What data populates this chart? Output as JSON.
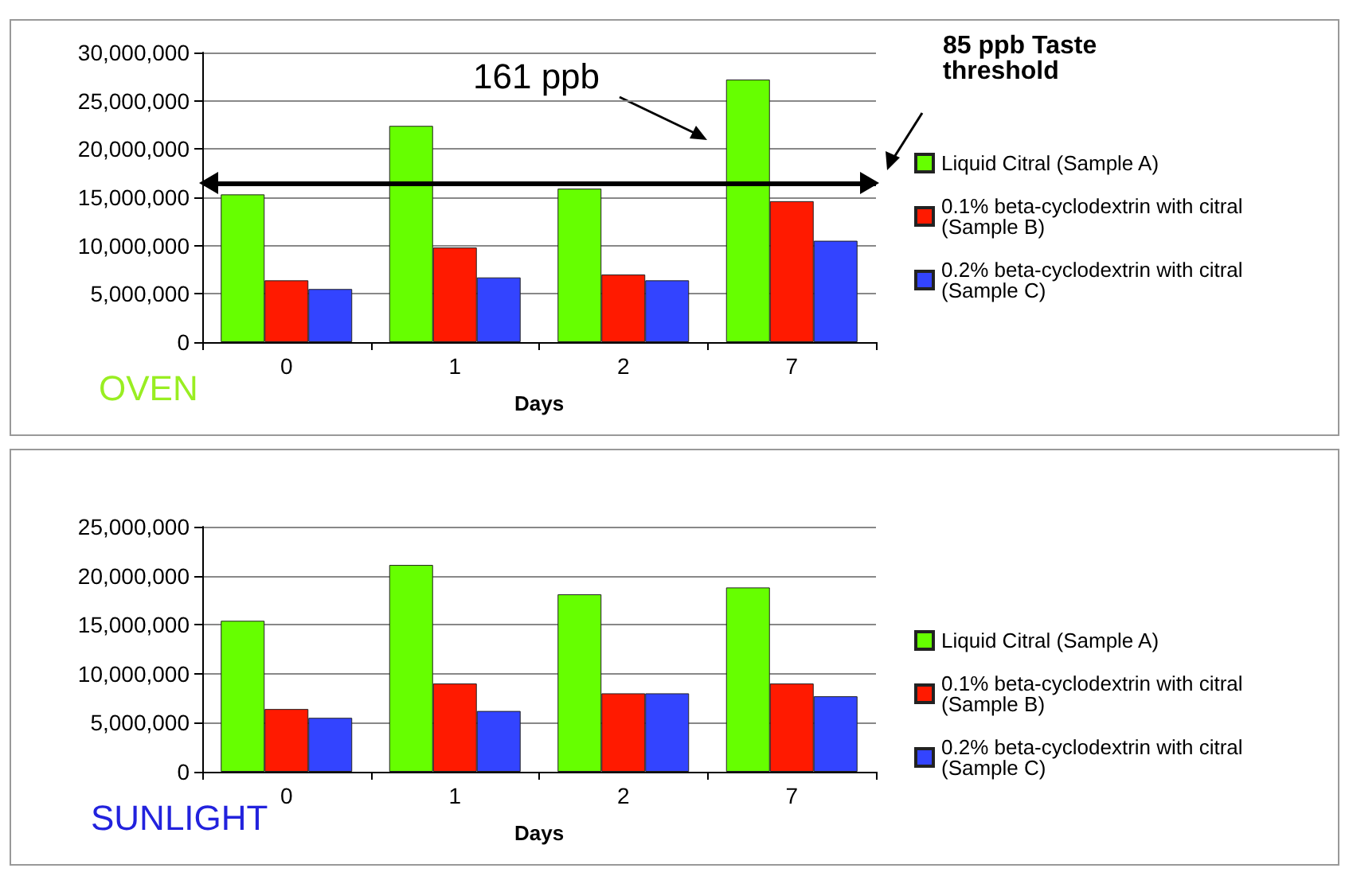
{
  "chart_data": [
    {
      "type": "bar",
      "title": "OVEN",
      "xlabel": "Days",
      "categories": [
        "0",
        "1",
        "2",
        "7"
      ],
      "series": [
        {
          "name": "Liquid Citral (Sample A)",
          "color": "#66ff00",
          "values": [
            15300000,
            22400000,
            15900000,
            27200000
          ]
        },
        {
          "name": "0.1% beta-cyclodextrin with citral (Sample B)",
          "color": "#ff1a00",
          "values": [
            6400000,
            9800000,
            7000000,
            14600000
          ]
        },
        {
          "name": "0.2% beta-cyclodextrin with citral (Sample C)",
          "color": "#3344ff",
          "values": [
            5500000,
            6700000,
            6400000,
            10500000
          ]
        }
      ],
      "ylim": [
        0,
        30000000
      ],
      "yticks": [
        {
          "value": 0,
          "label": "0"
        },
        {
          "value": 5000000,
          "label": "5,000,000"
        },
        {
          "value": 10000000,
          "label": "10,000,000"
        },
        {
          "value": 15000000,
          "label": "15,000,000"
        },
        {
          "value": 20000000,
          "label": "20,000,000"
        },
        {
          "value": 25000000,
          "label": "25,000,000"
        },
        {
          "value": 30000000,
          "label": "30,000,000"
        }
      ],
      "grid": "y",
      "legend": "right",
      "ref_lines": [
        {
          "axis": "y",
          "value": 16500000,
          "color": "#000000"
        }
      ],
      "annotations": [
        "161 ppb",
        "85 ppb Taste threshold"
      ]
    },
    {
      "type": "bar",
      "title": "SUNLIGHT",
      "xlabel": "Days",
      "categories": [
        "0",
        "1",
        "2",
        "7"
      ],
      "series": [
        {
          "name": "Liquid Citral (Sample A)",
          "color": "#66ff00",
          "values": [
            15400000,
            21100000,
            18100000,
            18800000
          ]
        },
        {
          "name": "0.1% beta-cyclodextrin with citral (Sample B)",
          "color": "#ff1a00",
          "values": [
            6400000,
            9000000,
            8000000,
            9000000
          ]
        },
        {
          "name": "0.2% beta-cyclodextrin with citral (Sample C)",
          "color": "#3344ff",
          "values": [
            5500000,
            6200000,
            8000000,
            7700000
          ]
        }
      ],
      "ylim": [
        0,
        25000000
      ],
      "yticks": [
        {
          "value": 0,
          "label": "0"
        },
        {
          "value": 5000000,
          "label": "5,000,000"
        },
        {
          "value": 10000000,
          "label": "10,000,000"
        },
        {
          "value": 15000000,
          "label": "15,000,000"
        },
        {
          "value": 20000000,
          "label": "20,000,000"
        },
        {
          "value": 25000000,
          "label": "25,000,000"
        }
      ],
      "grid": "y",
      "legend": "right"
    }
  ]
}
